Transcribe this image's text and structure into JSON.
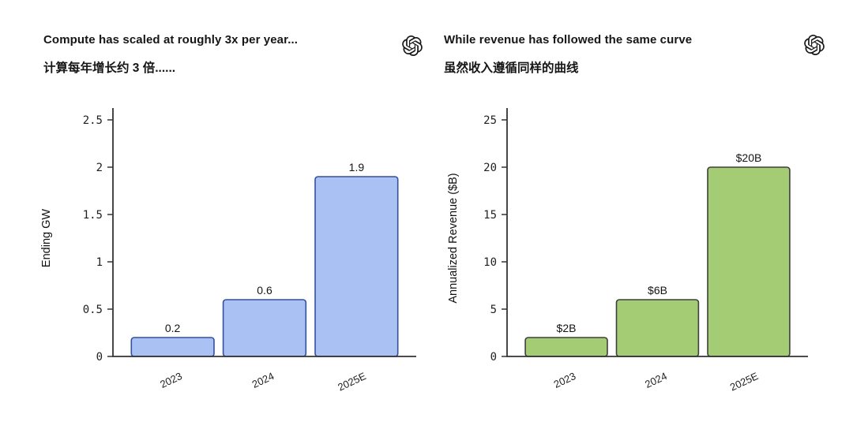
{
  "page": {
    "background": "#ffffff"
  },
  "icons": {
    "brand_logo": "openai-logo"
  },
  "chart_data": [
    {
      "type": "bar",
      "title": "Compute has scaled at roughly 3x per year...",
      "subtitle": "计算每年增长约 3 倍......",
      "categories": [
        "2023",
        "2024",
        "2025E"
      ],
      "values": [
        0.2,
        0.6,
        1.9
      ],
      "bar_labels": [
        "0.2",
        "0.6",
        "1.9"
      ],
      "xlabel": "",
      "ylabel": "Ending GW",
      "ylim": [
        0,
        2.5
      ],
      "ytick_labels": [
        "0",
        "0.5",
        "1",
        "1.5",
        "2",
        "2.5"
      ],
      "grid": false,
      "legend": false,
      "colors": {
        "bar_fill": "#a9c2f3",
        "bar_edge": "#35509e",
        "axis": "#333333"
      }
    },
    {
      "type": "bar",
      "title": "While revenue has followed the same curve",
      "subtitle": "虽然收入遵循同样的曲线",
      "categories": [
        "2023",
        "2024",
        "2025E"
      ],
      "values": [
        2,
        6,
        20
      ],
      "bar_labels": [
        "$2B",
        "$6B",
        "$20B"
      ],
      "xlabel": "",
      "ylabel": "Annualized Revenue ($B)",
      "ylim": [
        0,
        25
      ],
      "ytick_labels": [
        "0",
        "5",
        "10",
        "15",
        "20",
        "25"
      ],
      "grid": false,
      "legend": false,
      "colors": {
        "bar_fill": "#a3cc75",
        "bar_edge": "#3f3f3f",
        "axis": "#333333"
      }
    }
  ]
}
